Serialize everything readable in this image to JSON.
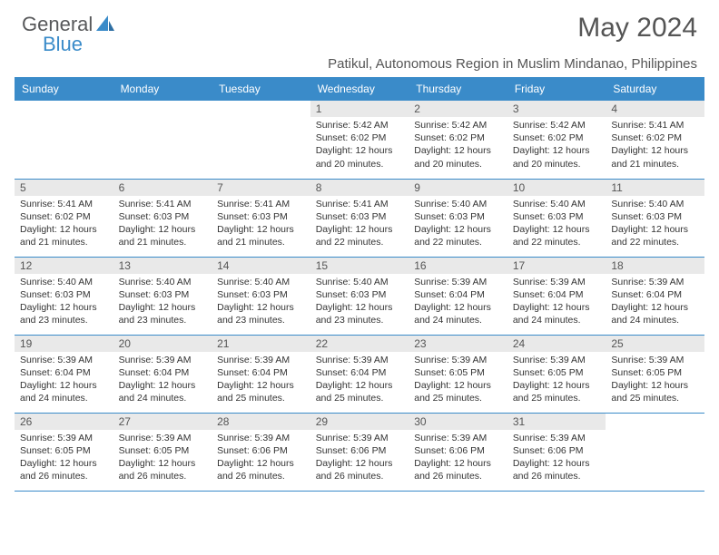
{
  "logo": {
    "text1": "General",
    "text2": "Blue"
  },
  "title": "May 2024",
  "location": "Patikul, Autonomous Region in Muslim Mindanao, Philippines",
  "colors": {
    "header_bg": "#3a8bc9",
    "daynum_bg": "#e9e9e9",
    "border": "#3a8bc9"
  },
  "dayHeaders": [
    "Sunday",
    "Monday",
    "Tuesday",
    "Wednesday",
    "Thursday",
    "Friday",
    "Saturday"
  ],
  "weeks": [
    [
      null,
      null,
      null,
      {
        "n": "1",
        "sr": "5:42 AM",
        "ss": "6:02 PM",
        "dl": "12 hours and 20 minutes."
      },
      {
        "n": "2",
        "sr": "5:42 AM",
        "ss": "6:02 PM",
        "dl": "12 hours and 20 minutes."
      },
      {
        "n": "3",
        "sr": "5:42 AM",
        "ss": "6:02 PM",
        "dl": "12 hours and 20 minutes."
      },
      {
        "n": "4",
        "sr": "5:41 AM",
        "ss": "6:02 PM",
        "dl": "12 hours and 21 minutes."
      }
    ],
    [
      {
        "n": "5",
        "sr": "5:41 AM",
        "ss": "6:02 PM",
        "dl": "12 hours and 21 minutes."
      },
      {
        "n": "6",
        "sr": "5:41 AM",
        "ss": "6:03 PM",
        "dl": "12 hours and 21 minutes."
      },
      {
        "n": "7",
        "sr": "5:41 AM",
        "ss": "6:03 PM",
        "dl": "12 hours and 21 minutes."
      },
      {
        "n": "8",
        "sr": "5:41 AM",
        "ss": "6:03 PM",
        "dl": "12 hours and 22 minutes."
      },
      {
        "n": "9",
        "sr": "5:40 AM",
        "ss": "6:03 PM",
        "dl": "12 hours and 22 minutes."
      },
      {
        "n": "10",
        "sr": "5:40 AM",
        "ss": "6:03 PM",
        "dl": "12 hours and 22 minutes."
      },
      {
        "n": "11",
        "sr": "5:40 AM",
        "ss": "6:03 PM",
        "dl": "12 hours and 22 minutes."
      }
    ],
    [
      {
        "n": "12",
        "sr": "5:40 AM",
        "ss": "6:03 PM",
        "dl": "12 hours and 23 minutes."
      },
      {
        "n": "13",
        "sr": "5:40 AM",
        "ss": "6:03 PM",
        "dl": "12 hours and 23 minutes."
      },
      {
        "n": "14",
        "sr": "5:40 AM",
        "ss": "6:03 PM",
        "dl": "12 hours and 23 minutes."
      },
      {
        "n": "15",
        "sr": "5:40 AM",
        "ss": "6:03 PM",
        "dl": "12 hours and 23 minutes."
      },
      {
        "n": "16",
        "sr": "5:39 AM",
        "ss": "6:04 PM",
        "dl": "12 hours and 24 minutes."
      },
      {
        "n": "17",
        "sr": "5:39 AM",
        "ss": "6:04 PM",
        "dl": "12 hours and 24 minutes."
      },
      {
        "n": "18",
        "sr": "5:39 AM",
        "ss": "6:04 PM",
        "dl": "12 hours and 24 minutes."
      }
    ],
    [
      {
        "n": "19",
        "sr": "5:39 AM",
        "ss": "6:04 PM",
        "dl": "12 hours and 24 minutes."
      },
      {
        "n": "20",
        "sr": "5:39 AM",
        "ss": "6:04 PM",
        "dl": "12 hours and 24 minutes."
      },
      {
        "n": "21",
        "sr": "5:39 AM",
        "ss": "6:04 PM",
        "dl": "12 hours and 25 minutes."
      },
      {
        "n": "22",
        "sr": "5:39 AM",
        "ss": "6:04 PM",
        "dl": "12 hours and 25 minutes."
      },
      {
        "n": "23",
        "sr": "5:39 AM",
        "ss": "6:05 PM",
        "dl": "12 hours and 25 minutes."
      },
      {
        "n": "24",
        "sr": "5:39 AM",
        "ss": "6:05 PM",
        "dl": "12 hours and 25 minutes."
      },
      {
        "n": "25",
        "sr": "5:39 AM",
        "ss": "6:05 PM",
        "dl": "12 hours and 25 minutes."
      }
    ],
    [
      {
        "n": "26",
        "sr": "5:39 AM",
        "ss": "6:05 PM",
        "dl": "12 hours and 26 minutes."
      },
      {
        "n": "27",
        "sr": "5:39 AM",
        "ss": "6:05 PM",
        "dl": "12 hours and 26 minutes."
      },
      {
        "n": "28",
        "sr": "5:39 AM",
        "ss": "6:06 PM",
        "dl": "12 hours and 26 minutes."
      },
      {
        "n": "29",
        "sr": "5:39 AM",
        "ss": "6:06 PM",
        "dl": "12 hours and 26 minutes."
      },
      {
        "n": "30",
        "sr": "5:39 AM",
        "ss": "6:06 PM",
        "dl": "12 hours and 26 minutes."
      },
      {
        "n": "31",
        "sr": "5:39 AM",
        "ss": "6:06 PM",
        "dl": "12 hours and 26 minutes."
      },
      null
    ]
  ],
  "labels": {
    "sunrise": "Sunrise: ",
    "sunset": "Sunset: ",
    "daylight": "Daylight: "
  }
}
